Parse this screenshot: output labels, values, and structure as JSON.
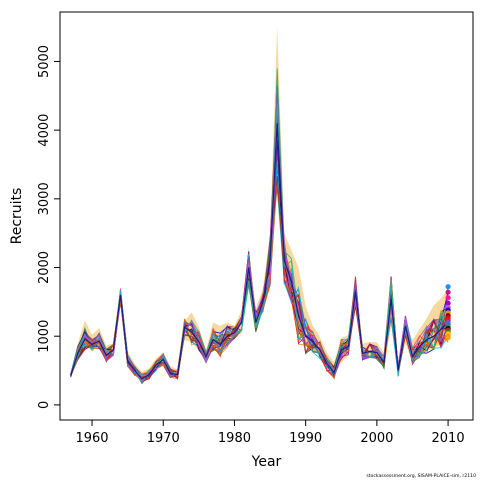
{
  "chart_data": {
    "type": "line",
    "xlabel": "Year",
    "ylabel": "Recruits",
    "xlim": [
      1955.5,
      2013.5
    ],
    "ylim": [
      -220,
      5720
    ],
    "x_ticks": [
      1960,
      1970,
      1980,
      1990,
      2000,
      2010
    ],
    "y_ticks": [
      0,
      1000,
      2000,
      3000,
      4000,
      5000
    ],
    "grid": false,
    "legend": "none",
    "credit": "stockassessment.org, SISAM-PLAICE-sim, r2110",
    "years": [
      1957,
      1958,
      1959,
      1960,
      1961,
      1962,
      1963,
      1964,
      1965,
      1966,
      1967,
      1968,
      1969,
      1970,
      1971,
      1972,
      1973,
      1974,
      1975,
      1976,
      1977,
      1978,
      1979,
      1980,
      1981,
      1982,
      1983,
      1984,
      1985,
      1986,
      1987,
      1988,
      1989,
      1990,
      1991,
      1992,
      1993,
      1994,
      1995,
      1996,
      1997,
      1998,
      1999,
      2000,
      2001,
      2002,
      2003,
      2004,
      2005,
      2006,
      2007,
      2008,
      2009,
      2010
    ],
    "base_recruits": [
      430,
      750,
      960,
      880,
      930,
      720,
      800,
      1600,
      650,
      500,
      380,
      440,
      580,
      660,
      460,
      440,
      1130,
      1060,
      920,
      700,
      950,
      880,
      1000,
      1050,
      1200,
      2000,
      1200,
      1500,
      2100,
      4100,
      2100,
      1800,
      1300,
      1000,
      920,
      800,
      600,
      470,
      800,
      850,
      1650,
      750,
      780,
      760,
      620,
      1550,
      500,
      1150,
      700,
      850,
      950,
      1000,
      1100,
      1200
    ],
    "band_upper": [
      470,
      900,
      1230,
      1020,
      1120,
      860,
      900,
      1700,
      780,
      600,
      480,
      530,
      680,
      770,
      560,
      520,
      1220,
      1350,
      1130,
      800,
      1200,
      1150,
      1200,
      1150,
      1380,
      2300,
      1400,
      1700,
      2500,
      5500,
      2500,
      2250,
      2000,
      1440,
      1150,
      990,
      760,
      620,
      980,
      1010,
      1900,
      890,
      920,
      910,
      760,
      1880,
      640,
      1240,
      940,
      1100,
      1260,
      1450,
      1550,
      1680
    ],
    "band_lower": [
      410,
      670,
      860,
      820,
      850,
      650,
      720,
      1480,
      580,
      440,
      320,
      380,
      500,
      580,
      400,
      390,
      940,
      920,
      780,
      610,
      830,
      760,
      840,
      960,
      1050,
      1700,
      1070,
      1380,
      1700,
      3400,
      1750,
      1500,
      1050,
      880,
      800,
      710,
      520,
      420,
      620,
      720,
      1400,
      680,
      680,
      690,
      550,
      1150,
      440,
      900,
      620,
      730,
      800,
      840,
      880,
      940
    ],
    "series_count": 30,
    "series_colors": [
      "#ff0000",
      "#0000cd",
      "#1e90ff",
      "#ff1493",
      "#8b0000",
      "#006400",
      "#ff8c00",
      "#9400d3",
      "#00ced1",
      "#ffd700",
      "#c71585",
      "#000000",
      "#228b22",
      "#b22222",
      "#4169e1",
      "#daa520",
      "#ff6347",
      "#2e8b57",
      "#8a2be2",
      "#dc143c",
      "#00bfff",
      "#556b2f",
      "#d2691e",
      "#4b0082",
      "#3cb371",
      "#ff4500",
      "#6a5acd",
      "#a52a2a",
      "#20b2aa",
      "#ba55d3"
    ],
    "band_color": "#f5d9a0",
    "band_edge_color": "#60c8a0",
    "endpoint_values": [
      1720,
      1640,
      1560,
      1480,
      1420,
      1380,
      1340,
      1300,
      1260,
      1230,
      1200,
      1170,
      1140,
      1110,
      1090,
      1060,
      1040,
      1020,
      1000,
      980
    ],
    "endpoint_colors": [
      "#1e90ff",
      "#c71585",
      "#ff1493",
      "#9400d3",
      "#ba55d3",
      "#0000cd",
      "#ff8c00",
      "#8b0000",
      "#ff0000",
      "#dc143c",
      "#6a5acd",
      "#4169e1",
      "#2e8b57",
      "#000000",
      "#b22222",
      "#228b22",
      "#daa520",
      "#ffd700",
      "#ff8c00",
      "#ffa500"
    ]
  }
}
